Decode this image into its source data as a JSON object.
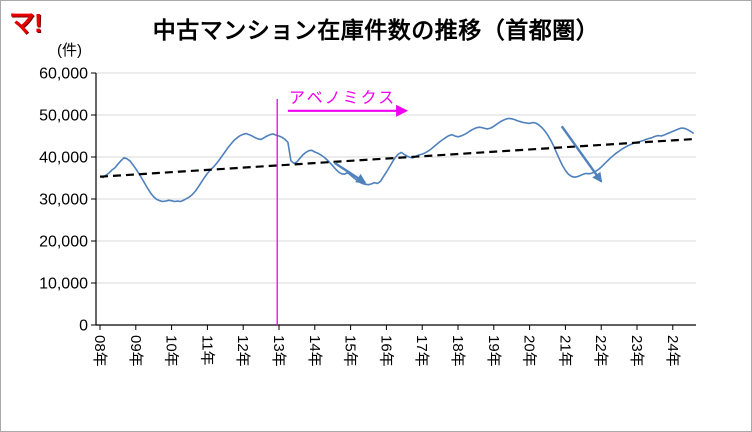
{
  "logo": "マ!",
  "title": "中古マンション在庫件数の推移（首都圏）",
  "y_axis_unit": "(件)",
  "chart_data": {
    "type": "line",
    "title": "中古マンション在庫件数の推移（首都圏）",
    "ylabel": "(件)",
    "ylim": [
      0,
      60000
    ],
    "ytick_step": 10000,
    "y_tick_labels": [
      "0",
      "10,000",
      "20,000",
      "30,000",
      "40,000",
      "50,000",
      "60,000"
    ],
    "x_start_year": 2008,
    "x_months_per_point": 1,
    "x_tick_labels": [
      "08年",
      "09年",
      "10年",
      "11年",
      "12年",
      "13年",
      "14年",
      "15年",
      "16年",
      "17年",
      "18年",
      "19年",
      "20年",
      "21年",
      "22年",
      "23年",
      "24年"
    ],
    "grid": "horizontal",
    "legend": "none",
    "series": [
      {
        "name": "中古マンション在庫件数",
        "color": "#4f81bd",
        "values": [
          35500,
          35100,
          35700,
          36200,
          36900,
          37400,
          38300,
          39100,
          39800,
          39600,
          39100,
          38200,
          37200,
          36100,
          34900,
          33700,
          32500,
          31400,
          30500,
          29900,
          29600,
          29400,
          29500,
          29700,
          29600,
          29400,
          29500,
          29400,
          29700,
          30100,
          30500,
          31100,
          31900,
          32900,
          34000,
          35100,
          36100,
          36900,
          37600,
          38400,
          39300,
          40300,
          41300,
          42300,
          43200,
          44000,
          44600,
          45100,
          45400,
          45600,
          45300,
          45000,
          44600,
          44300,
          44200,
          44600,
          45000,
          45300,
          45500,
          45200,
          45000,
          44700,
          44200,
          43500,
          39100,
          38500,
          38800,
          39700,
          40500,
          41100,
          41500,
          41600,
          41200,
          40900,
          40500,
          40000,
          39400,
          38700,
          37900,
          37100,
          36400,
          36000,
          35900,
          36300,
          35700,
          35100,
          34500,
          34000,
          33700,
          33500,
          33400,
          33600,
          33900,
          33700,
          34200,
          35300,
          36400,
          37600,
          38800,
          39900,
          40700,
          41100,
          40600,
          40200,
          39900,
          39800,
          40200,
          40500,
          40700,
          41000,
          41400,
          41900,
          42500,
          43100,
          43700,
          44200,
          44700,
          45100,
          45300,
          45000,
          44800,
          45000,
          45300,
          45700,
          46200,
          46600,
          46900,
          47100,
          47000,
          46800,
          46700,
          46900,
          47300,
          47800,
          48300,
          48700,
          49000,
          49200,
          49100,
          48900,
          48600,
          48400,
          48200,
          48100,
          48000,
          48200,
          48100,
          47700,
          47100,
          46300,
          45300,
          44100,
          42700,
          41100,
          39500,
          38000,
          36800,
          35900,
          35400,
          35200,
          35300,
          35600,
          35900,
          36100,
          36000,
          36200,
          36500,
          37000,
          37600,
          38300,
          39000,
          39700,
          40300,
          40900,
          41400,
          41900,
          42300,
          42700,
          43000,
          43300,
          43500,
          43700,
          43900,
          44200,
          44400,
          44600,
          44900,
          45100,
          45000,
          45200,
          45500,
          45800,
          46100,
          46400,
          46700,
          46900,
          46800,
          46500,
          46100,
          45600
        ]
      }
    ],
    "trend": {
      "style": "dashed",
      "color": "#000000",
      "start_value": 35300,
      "end_value": 44300
    },
    "annotations": {
      "abenomics": {
        "label": "アベノミクス",
        "color": "#f000f0",
        "vline_year": 2012.95,
        "vline_top_value": 53800,
        "arrow_from_year": 2013.25,
        "arrow_to_year": 2016.55,
        "arrow_value": 51000,
        "label_year": 2013.28,
        "label_value": 52900
      },
      "down_arrows": [
        {
          "from": {
            "year": 2014.55,
            "value": 38600
          },
          "to": {
            "year": 2015.4,
            "value": 33900
          }
        },
        {
          "from": {
            "year": 2020.9,
            "value": 47300
          },
          "to": {
            "year": 2022.0,
            "value": 34200
          }
        }
      ]
    }
  }
}
